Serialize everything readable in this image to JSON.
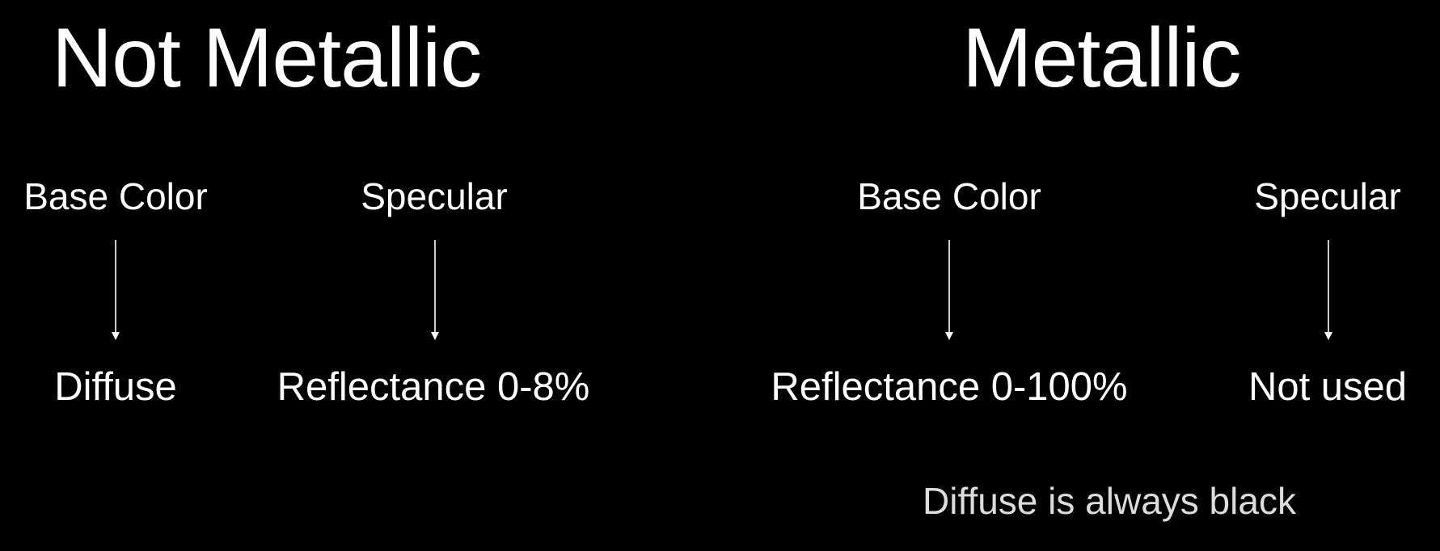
{
  "colors": {
    "background": "#000000",
    "text": "#ffffff",
    "note_text": "#dcdcdc",
    "arrow": "#ffffff"
  },
  "not_metallic": {
    "title": "Not Metallic",
    "base_color": {
      "label": "Base Color",
      "result": "Diffuse"
    },
    "specular": {
      "label": "Specular",
      "result": "Reflectance 0-8%"
    }
  },
  "metallic": {
    "title": "Metallic",
    "base_color": {
      "label": "Base Color",
      "result": "Reflectance 0-100%"
    },
    "specular": {
      "label": "Specular",
      "result": "Not used"
    },
    "note": "Diffuse is always black"
  }
}
